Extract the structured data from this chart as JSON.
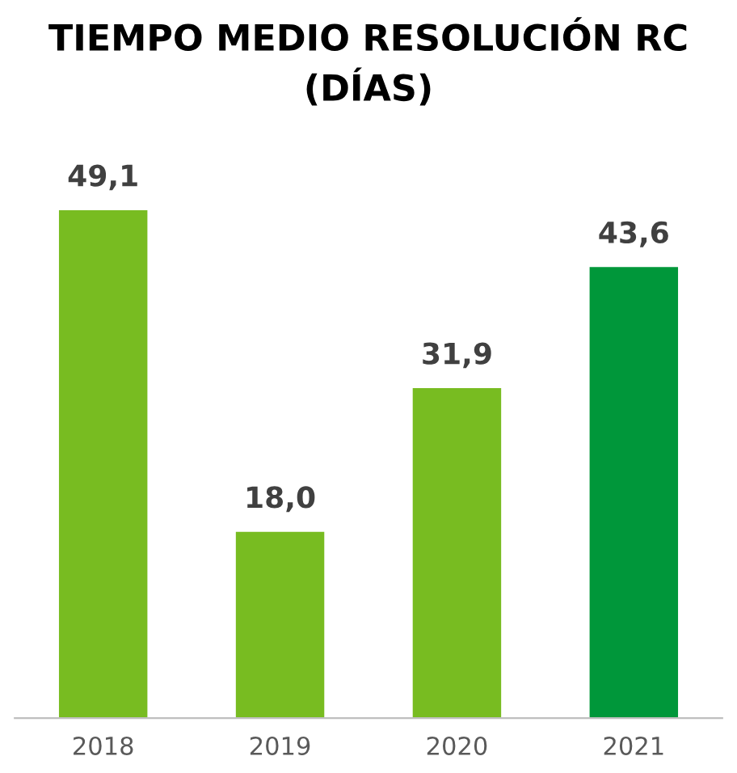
{
  "chart_data": {
    "type": "bar",
    "title": "TIEMPO MEDIO RESOLUCIÓN RC\n(DÍAS)",
    "categories": [
      "2018",
      "2019",
      "2020",
      "2021"
    ],
    "values": [
      49.1,
      18.0,
      31.9,
      43.6
    ],
    "value_labels": [
      "49,1",
      "18,0",
      "31,9",
      "43,6"
    ],
    "colors": [
      "#78bc21",
      "#78bc21",
      "#78bc21",
      "#00973a"
    ],
    "grid": false,
    "legend": false,
    "tick_labels": "x"
  }
}
